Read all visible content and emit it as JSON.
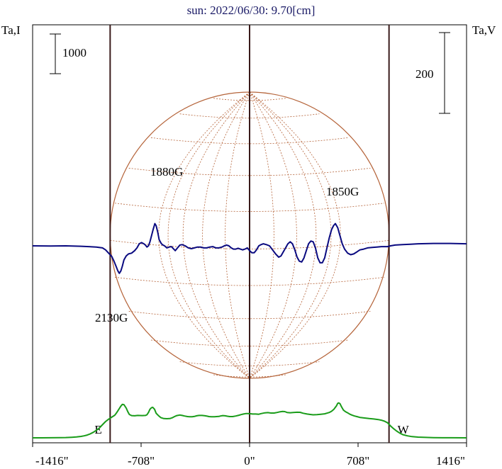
{
  "chart_data": {
    "type": "line",
    "title": "sun: 2022/06/30: 9.70[cm]",
    "left_axis_label": "Ta,I",
    "right_axis_label": "Ta,V",
    "left_scale_bar": {
      "label": "1000",
      "value": 1000
    },
    "right_scale_bar": {
      "label": "200",
      "value": 200
    },
    "x_ticks": [
      {
        "value": -1416,
        "label": "-1416\""
      },
      {
        "value": -708,
        "label": "-708\""
      },
      {
        "value": 0,
        "label": "0\""
      },
      {
        "value": 708,
        "label": "708\""
      },
      {
        "value": 1416,
        "label": "1416\""
      }
    ],
    "xlim": [
      -1416,
      1416
    ],
    "limb_markers": [
      {
        "label": "E",
        "x": -910
      },
      {
        "label": "W",
        "x": 910
      }
    ],
    "center_line_x": 0,
    "annotations": [
      {
        "text": "1880G",
        "x": -470,
        "series": "I"
      },
      {
        "text": "1850G",
        "x": 740,
        "series": "I"
      },
      {
        "text": "2130G",
        "x": -830,
        "series": "V"
      }
    ],
    "colors": {
      "I": "#1a9c1a",
      "V": "#0a0a80",
      "limb_lines": "#3a1a1a",
      "sun_disk": "#b5643a",
      "grid": "#b5643a",
      "title": "#1a1a66"
    },
    "series": [
      {
        "key": "I",
        "points": [
          [
            -1416,
            0
          ],
          [
            -1360,
            0.5
          ],
          [
            -1300,
            1.5
          ],
          [
            -1240,
            4
          ],
          [
            -1200,
            8
          ],
          [
            -1160,
            14
          ],
          [
            -1130,
            22
          ],
          [
            -1100,
            35
          ],
          [
            -1080,
            50
          ],
          [
            -1060,
            70
          ],
          [
            -1040,
            100
          ],
          [
            -1020,
            140
          ],
          [
            -1000,
            190
          ],
          [
            -980,
            250
          ],
          [
            -960,
            330
          ],
          [
            -940,
            410
          ],
          [
            -920,
            470
          ],
          [
            -900,
            520
          ],
          [
            -880,
            570
          ],
          [
            -870,
            620
          ],
          [
            -860,
            680
          ],
          [
            -850,
            740
          ],
          [
            -840,
            800
          ],
          [
            -830,
            845
          ],
          [
            -820,
            835
          ],
          [
            -805,
            750
          ],
          [
            -795,
            660
          ],
          [
            -785,
            590
          ],
          [
            -770,
            560
          ],
          [
            -750,
            555
          ],
          [
            -730,
            565
          ],
          [
            -700,
            560
          ],
          [
            -680,
            565
          ],
          [
            -670,
            580
          ],
          [
            -660,
            640
          ],
          [
            -650,
            720
          ],
          [
            -640,
            760
          ],
          [
            -632,
            770
          ],
          [
            -620,
            720
          ],
          [
            -610,
            620
          ],
          [
            -595,
            560
          ],
          [
            -580,
            510
          ],
          [
            -560,
            485
          ],
          [
            -540,
            482
          ],
          [
            -520,
            485
          ],
          [
            -505,
            505
          ],
          [
            -490,
            535
          ],
          [
            -475,
            560
          ],
          [
            -455,
            575
          ],
          [
            -440,
            565
          ],
          [
            -425,
            550
          ],
          [
            -405,
            535
          ],
          [
            -390,
            530
          ],
          [
            -375,
            530
          ],
          [
            -360,
            540
          ],
          [
            -345,
            555
          ],
          [
            -330,
            565
          ],
          [
            -310,
            565
          ],
          [
            -290,
            556
          ],
          [
            -275,
            545
          ],
          [
            -265,
            535
          ],
          [
            -250,
            530
          ],
          [
            -230,
            530
          ],
          [
            -215,
            535
          ],
          [
            -200,
            540
          ],
          [
            -190,
            550
          ],
          [
            -175,
            560
          ],
          [
            -160,
            556
          ],
          [
            -145,
            545
          ],
          [
            -130,
            535
          ],
          [
            -110,
            535
          ],
          [
            -90,
            550
          ],
          [
            -70,
            570
          ],
          [
            -55,
            585
          ],
          [
            -40,
            600
          ],
          [
            -25,
            610
          ],
          [
            -10,
            612
          ],
          [
            5,
            608
          ],
          [
            20,
            600
          ],
          [
            40,
            600
          ],
          [
            60,
            595
          ],
          [
            75,
            610
          ],
          [
            100,
            630
          ],
          [
            120,
            635
          ],
          [
            140,
            625
          ],
          [
            160,
            625
          ],
          [
            180,
            640
          ],
          [
            200,
            658
          ],
          [
            215,
            665
          ],
          [
            230,
            660
          ],
          [
            245,
            640
          ],
          [
            265,
            632
          ],
          [
            285,
            640
          ],
          [
            310,
            645
          ],
          [
            330,
            642
          ],
          [
            350,
            620
          ],
          [
            375,
            600
          ],
          [
            395,
            590
          ],
          [
            415,
            580
          ],
          [
            440,
            585
          ],
          [
            465,
            595
          ],
          [
            490,
            605
          ],
          [
            505,
            622
          ],
          [
            520,
            640
          ],
          [
            535,
            670
          ],
          [
            550,
            720
          ],
          [
            560,
            770
          ],
          [
            568,
            810
          ],
          [
            575,
            870
          ],
          [
            582,
            880
          ],
          [
            590,
            860
          ],
          [
            600,
            780
          ],
          [
            612,
            700
          ],
          [
            625,
            660
          ],
          [
            640,
            630
          ],
          [
            655,
            595
          ],
          [
            670,
            570
          ],
          [
            685,
            550
          ],
          [
            700,
            535
          ],
          [
            720,
            515
          ],
          [
            750,
            500
          ],
          [
            780,
            485
          ],
          [
            810,
            475
          ],
          [
            840,
            460
          ],
          [
            860,
            445
          ],
          [
            880,
            420
          ],
          [
            900,
            380
          ],
          [
            920,
            300
          ],
          [
            940,
            230
          ],
          [
            960,
            170
          ],
          [
            980,
            120
          ],
          [
            1000,
            80
          ],
          [
            1030,
            50
          ],
          [
            1060,
            30
          ],
          [
            1100,
            18
          ],
          [
            1150,
            10
          ],
          [
            1200,
            5
          ],
          [
            1260,
            2
          ],
          [
            1320,
            1
          ],
          [
            1416,
            0
          ]
        ]
      },
      {
        "key": "V",
        "points": [
          [
            -1416,
            0
          ],
          [
            -1300,
            -0.5
          ],
          [
            -1200,
            0
          ],
          [
            -1100,
            -1
          ],
          [
            -1000,
            -3
          ],
          [
            -960,
            -5
          ],
          [
            -940,
            -10
          ],
          [
            -920,
            -18
          ],
          [
            -900,
            -26
          ],
          [
            -885,
            -38
          ],
          [
            -870,
            -52
          ],
          [
            -860,
            -62
          ],
          [
            -850,
            -68
          ],
          [
            -840,
            -62
          ],
          [
            -830,
            -50
          ],
          [
            -820,
            -35
          ],
          [
            -805,
            -25
          ],
          [
            -790,
            -20
          ],
          [
            -770,
            -18
          ],
          [
            -750,
            -12
          ],
          [
            -735,
            -5
          ],
          [
            -720,
            5
          ],
          [
            -705,
            8
          ],
          [
            -690,
            5
          ],
          [
            -680,
            2
          ],
          [
            -670,
            -3
          ],
          [
            -660,
            0
          ],
          [
            -650,
            10
          ],
          [
            -640,
            25
          ],
          [
            -630,
            40
          ],
          [
            -618,
            55
          ],
          [
            -610,
            50
          ],
          [
            -600,
            35
          ],
          [
            -590,
            15
          ],
          [
            -575,
            5
          ],
          [
            -565,
            2
          ],
          [
            -555,
            0
          ],
          [
            -540,
            -5
          ],
          [
            -525,
            -3
          ],
          [
            -510,
            -2
          ],
          [
            -495,
            -8
          ],
          [
            -485,
            -12
          ],
          [
            -470,
            -5
          ],
          [
            -455,
            2
          ],
          [
            -440,
            3
          ],
          [
            -420,
            0
          ],
          [
            -400,
            -5
          ],
          [
            -380,
            -7
          ],
          [
            -360,
            -5
          ],
          [
            -340,
            -3
          ],
          [
            -320,
            -3
          ],
          [
            -300,
            -5
          ],
          [
            -280,
            -5
          ],
          [
            -260,
            -3
          ],
          [
            -240,
            -2
          ],
          [
            -220,
            -5
          ],
          [
            -200,
            -5
          ],
          [
            -180,
            -3
          ],
          [
            -165,
            0
          ],
          [
            -150,
            2
          ],
          [
            -135,
            0
          ],
          [
            -120,
            -5
          ],
          [
            -105,
            -8
          ],
          [
            -90,
            -8
          ],
          [
            -75,
            -6
          ],
          [
            -60,
            -8
          ],
          [
            -45,
            -10
          ],
          [
            -30,
            -8
          ],
          [
            -15,
            -5
          ],
          [
            0,
            -12
          ],
          [
            15,
            -17
          ],
          [
            30,
            -17
          ],
          [
            45,
            -10
          ],
          [
            60,
            0
          ],
          [
            75,
            3
          ],
          [
            90,
            5
          ],
          [
            110,
            3
          ],
          [
            130,
            0
          ],
          [
            150,
            -10
          ],
          [
            170,
            -20
          ],
          [
            190,
            -28
          ],
          [
            205,
            -25
          ],
          [
            220,
            -15
          ],
          [
            235,
            -5
          ],
          [
            250,
            5
          ],
          [
            265,
            10
          ],
          [
            280,
            5
          ],
          [
            295,
            -10
          ],
          [
            310,
            -28
          ],
          [
            325,
            -38
          ],
          [
            340,
            -40
          ],
          [
            355,
            -30
          ],
          [
            370,
            -12
          ],
          [
            385,
            5
          ],
          [
            400,
            12
          ],
          [
            415,
            10
          ],
          [
            430,
            -5
          ],
          [
            445,
            -30
          ],
          [
            460,
            -42
          ],
          [
            475,
            -42
          ],
          [
            490,
            -30
          ],
          [
            505,
            -5
          ],
          [
            520,
            20
          ],
          [
            535,
            40
          ],
          [
            548,
            50
          ],
          [
            560,
            55
          ],
          [
            575,
            45
          ],
          [
            590,
            25
          ],
          [
            605,
            5
          ],
          [
            620,
            -8
          ],
          [
            640,
            -18
          ],
          [
            660,
            -22
          ],
          [
            680,
            -20
          ],
          [
            700,
            -15
          ],
          [
            720,
            -10
          ],
          [
            745,
            -8
          ],
          [
            770,
            -5
          ],
          [
            800,
            -4
          ],
          [
            830,
            -3
          ],
          [
            860,
            -2
          ],
          [
            880,
            -2
          ],
          [
            900,
            -2
          ],
          [
            920,
            0
          ],
          [
            950,
            2
          ],
          [
            1000,
            3
          ],
          [
            1050,
            4
          ],
          [
            1100,
            5
          ],
          [
            1200,
            6
          ],
          [
            1300,
            6
          ],
          [
            1416,
            5
          ]
        ]
      }
    ]
  }
}
